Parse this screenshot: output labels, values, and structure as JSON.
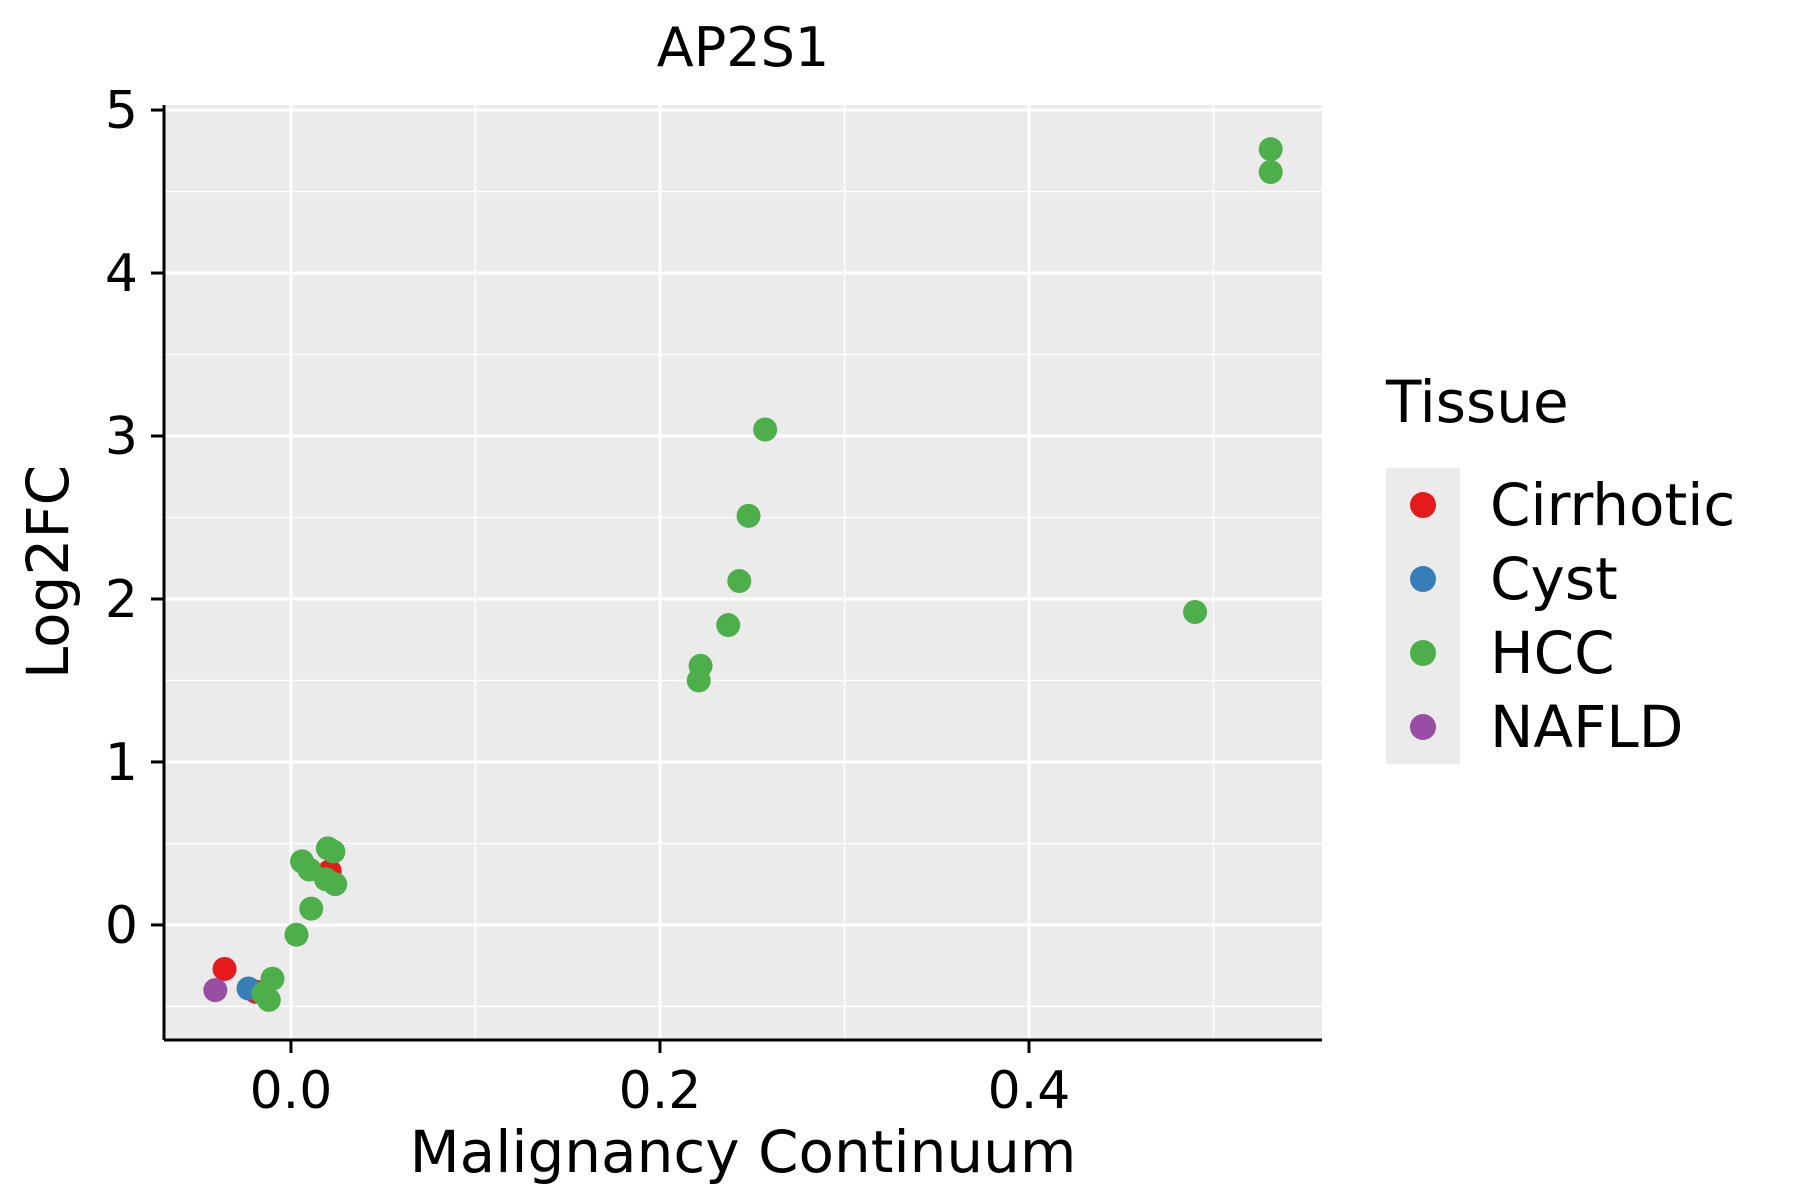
{
  "chart_data": {
    "type": "scatter",
    "title": "AP2S1",
    "xlabel": "Malignancy Continuum",
    "ylabel": "Log2FC",
    "legend_title": "Tissue",
    "legend_position": "right",
    "grid": true,
    "panel_bg": "#ebebeb",
    "grid_color": "#ffffff",
    "axis_color": "#000000",
    "text_color": "#000000",
    "point_radius": 12,
    "xlim": [
      -0.0688,
      0.5588
    ],
    "ylim": [
      -0.706,
      5.031
    ],
    "x_ticks": [
      0.0,
      0.2,
      0.4
    ],
    "x_tick_labels": [
      "0.0",
      "0.2",
      "0.4"
    ],
    "y_ticks": [
      0,
      1,
      2,
      3,
      4,
      5
    ],
    "y_tick_labels": [
      "0",
      "1",
      "2",
      "3",
      "4",
      "5"
    ],
    "series": [
      {
        "name": "Cirrhotic",
        "color": "#e41a1c",
        "points": [
          [
            -0.036,
            -0.27
          ],
          [
            -0.019,
            -0.41
          ],
          [
            0.021,
            0.33
          ]
        ]
      },
      {
        "name": "Cyst",
        "color": "#377eb8",
        "points": [
          [
            -0.023,
            -0.39
          ]
        ]
      },
      {
        "name": "HCC",
        "color": "#4daf4a",
        "points": [
          [
            0.531,
            4.76
          ],
          [
            0.531,
            4.62
          ],
          [
            0.257,
            3.04
          ],
          [
            0.248,
            2.51
          ],
          [
            0.243,
            2.11
          ],
          [
            0.237,
            1.84
          ],
          [
            0.222,
            1.59
          ],
          [
            0.221,
            1.5
          ],
          [
            0.49,
            1.92
          ],
          [
            0.006,
            0.39
          ],
          [
            0.01,
            0.34
          ],
          [
            0.02,
            0.47
          ],
          [
            0.023,
            0.45
          ],
          [
            0.019,
            0.28
          ],
          [
            0.024,
            0.25
          ],
          [
            0.011,
            0.1
          ],
          [
            0.003,
            -0.06
          ],
          [
            -0.01,
            -0.33
          ],
          [
            -0.015,
            -0.42
          ],
          [
            -0.012,
            -0.46
          ]
        ]
      },
      {
        "name": "NAFLD",
        "color": "#984ea3",
        "points": [
          [
            -0.041,
            -0.4
          ]
        ]
      }
    ]
  }
}
